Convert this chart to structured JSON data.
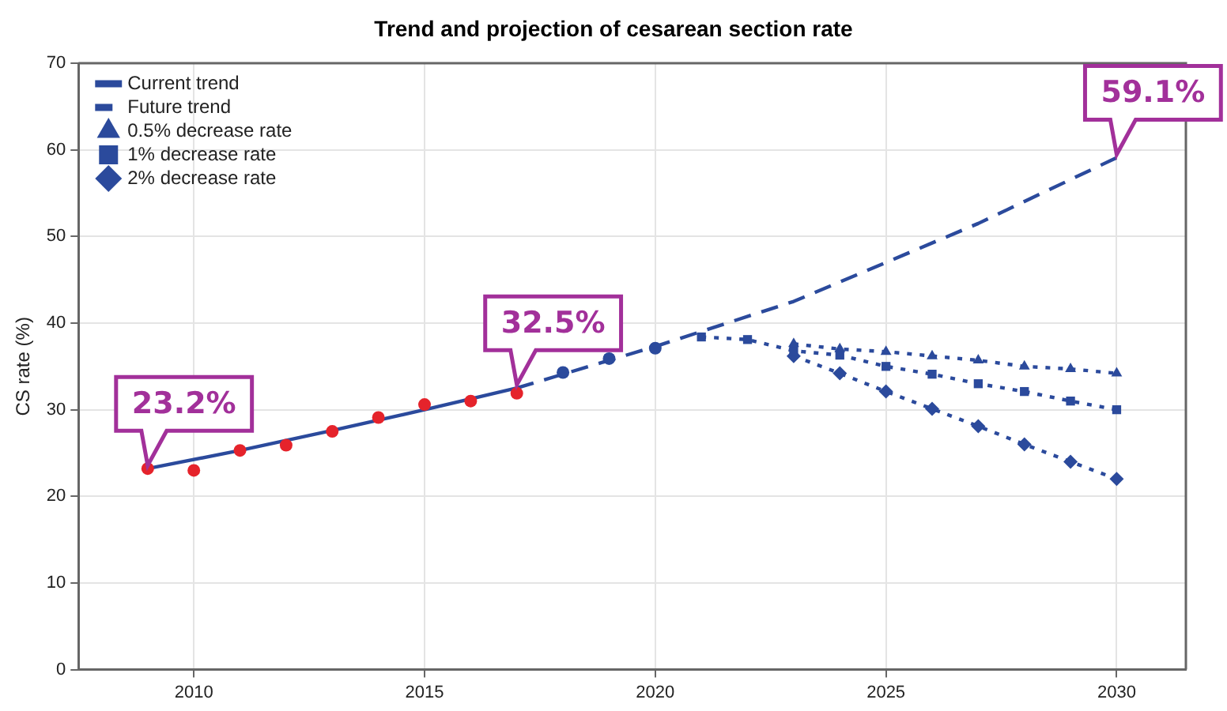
{
  "chart_data": {
    "type": "line",
    "title": "Trend and projection of cesarean section rate",
    "ylabel": "CS rate (%)",
    "xlim": [
      2007.5,
      2031.5
    ],
    "xticks": [
      2010,
      2015,
      2020,
      2025,
      2030
    ],
    "ylim": [
      0,
      70
    ],
    "yticks": [
      0,
      10,
      20,
      30,
      40,
      50,
      60,
      70
    ],
    "grid": true,
    "legend": "top left",
    "series": [
      {
        "type": "scatter",
        "color": "#e5232b",
        "marker": "circle",
        "x": [
          2009,
          2010,
          2011,
          2012,
          2013,
          2014,
          2015,
          2016,
          2017
        ],
        "values": [
          23.2,
          23.0,
          25.3,
          25.9,
          27.5,
          29.1,
          30.6,
          31.0,
          31.9
        ]
      },
      {
        "name": "Current trend",
        "color": "#2b4a9c",
        "line_style": "solid",
        "marker": "none",
        "x": [
          2009,
          2011,
          2013,
          2015,
          2017
        ],
        "values": [
          23.2,
          25.3,
          27.6,
          30.0,
          32.5
        ]
      },
      {
        "name": "Future trend",
        "color": "#2b4a9c",
        "line_style": "dashed",
        "marker": "none",
        "x": [
          2017,
          2020,
          2023,
          2025,
          2027,
          2030
        ],
        "values": [
          32.5,
          37.3,
          42.5,
          47.0,
          51.5,
          59.1
        ]
      },
      {
        "type": "scatter",
        "color": "#2b4a9c",
        "marker": "circle",
        "x": [
          2018,
          2019,
          2020
        ],
        "values": [
          34.3,
          35.9,
          37.1
        ]
      },
      {
        "name": "0.5% decrease rate",
        "color": "#2b4a9c",
        "line_style": "dotted",
        "marker": "triangle",
        "x": [
          2023,
          2024,
          2025,
          2026,
          2027,
          2028,
          2029,
          2030
        ],
        "values": [
          37.6,
          37.0,
          36.7,
          36.2,
          35.7,
          35.0,
          34.7,
          34.2
        ]
      },
      {
        "name": "1% decrease rate",
        "color": "#2b4a9c",
        "line_style": "dotted",
        "marker": "square",
        "x": [
          2021,
          2022,
          2023,
          2024,
          2025,
          2026,
          2027,
          2028,
          2029,
          2030
        ],
        "values": [
          38.4,
          38.1,
          36.8,
          36.3,
          35.0,
          34.1,
          33.0,
          32.1,
          31.0,
          30.0
        ]
      },
      {
        "name": "2% decrease rate",
        "color": "#2b4a9c",
        "line_style": "dotted",
        "marker": "diamond",
        "x": [
          2023,
          2024,
          2025,
          2026,
          2027,
          2028,
          2029,
          2030
        ],
        "values": [
          36.2,
          34.2,
          32.1,
          30.1,
          28.1,
          26.0,
          24.0,
          22.0
        ]
      }
    ],
    "annotations": [
      {
        "text": "23.2%",
        "x": 2009,
        "y": 23.2
      },
      {
        "text": "32.5%",
        "x": 2017,
        "y": 32.5
      },
      {
        "text": "59.1%",
        "x": 2030,
        "y": 59.1
      }
    ]
  }
}
